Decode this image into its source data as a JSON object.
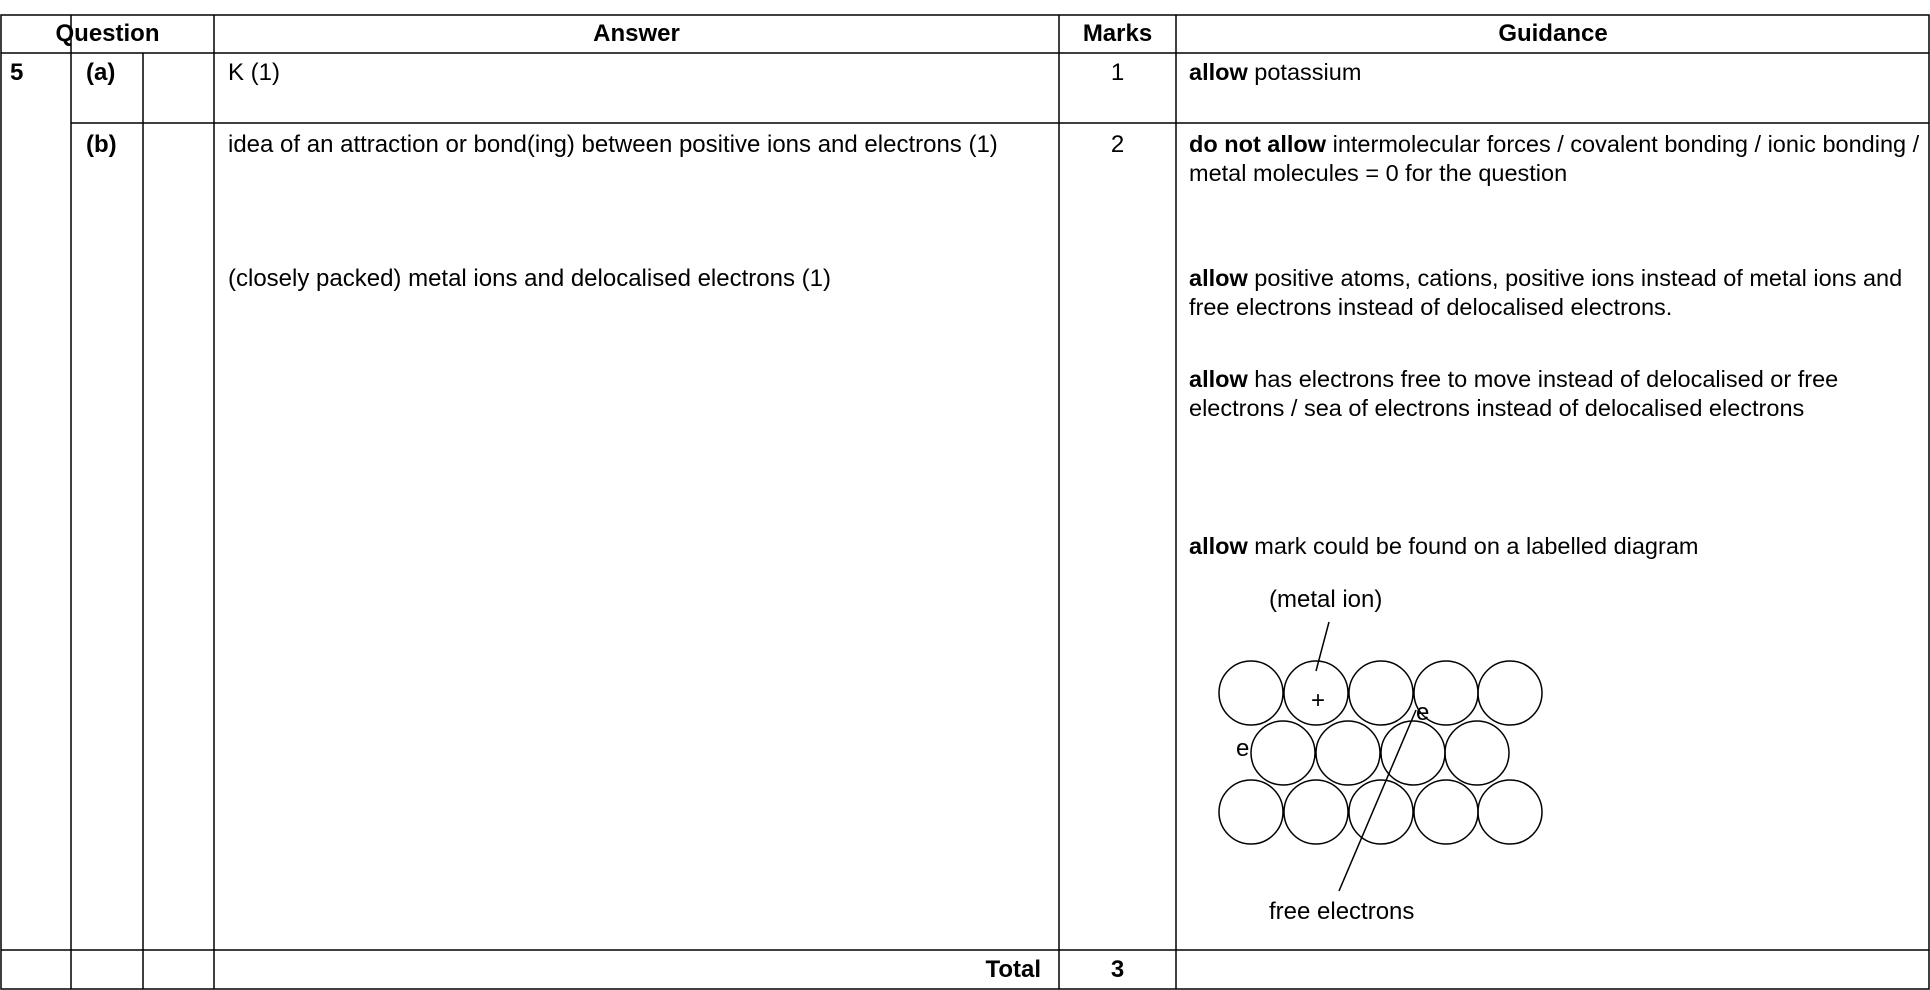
{
  "header": {
    "question": "Question",
    "answer": "Answer",
    "marks": "Marks",
    "guidance": "Guidance"
  },
  "rows": [
    {
      "question": "5",
      "part": "(a)",
      "answer": [
        "K (1)"
      ],
      "marks": 1,
      "guidance": [
        {
          "bold": "allow",
          "text": "potassium"
        }
      ]
    },
    {
      "part": "(b)",
      "answer": [
        "idea of an attraction or bond(ing) between positive ions and electrons (1)",
        "(closely packed) metal ions and delocalised electrons (1)"
      ],
      "marks": 2,
      "guidance": [
        {
          "bold": "do not allow",
          "text": "intermolecular forces / covalent bonding / ionic bonding / metal molecules = 0 for the question"
        },
        {
          "bold": "allow",
          "text": "positive atoms, cations, positive ions instead of metal ions and free electrons instead of delocalised electrons."
        },
        {
          "bold": "allow",
          "text": "has electrons free to move instead of delocalised or free electrons / sea of electrons instead of delocalised electrons"
        },
        {
          "bold": "allow",
          "text": "mark could be found on a labelled diagram"
        }
      ]
    }
  ],
  "total": {
    "label": "Total",
    "marks": 3
  },
  "diagram": {
    "metal_ion": "(metal ion)",
    "plus": "+",
    "electron_1": "e",
    "electron_2": "e",
    "free_electrons": "free electrons"
  }
}
